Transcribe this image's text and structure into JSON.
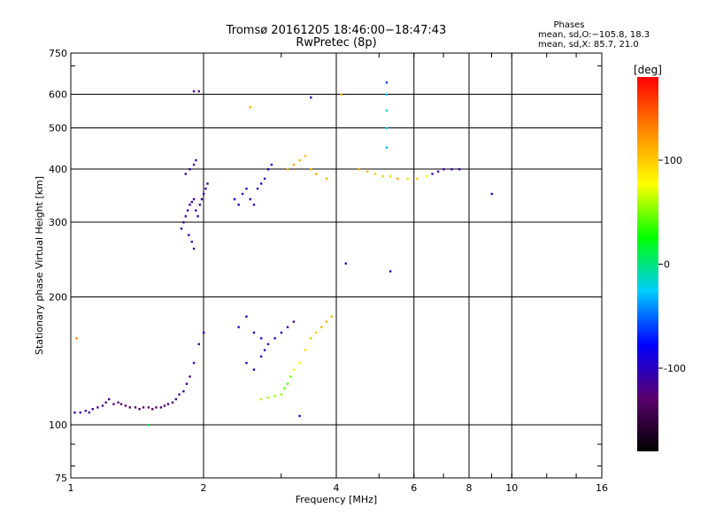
{
  "header": {
    "title_line1": "Tromsø 20161205 18:46:00−18:47:43",
    "title_line2": "RwPretec (8p)"
  },
  "phase_box": {
    "heading": "Phases",
    "line_o": "mean, sd,O:−105.8, 18.3",
    "line_x": "mean, sd,X:  85.7, 21.0"
  },
  "chart_data": {
    "type": "scatter",
    "title": "Tromsø 20161205 18:46:00−18:47:43",
    "subtitle": "RwPretec (8p)",
    "xlabel": "Frequency [MHz]",
    "ylabel": "Stationary phase Virtual Height [km]",
    "x_scale": "log",
    "y_scale": "log",
    "xlim": [
      1,
      16
    ],
    "ylim": [
      75,
      750
    ],
    "x_ticks": [
      1,
      2,
      4,
      6,
      8,
      10,
      16
    ],
    "x_tick_labels": [
      "1",
      "2",
      "4",
      "6",
      "8",
      "10",
      "16"
    ],
    "x_grid": [
      2,
      4,
      6,
      8,
      10
    ],
    "y_ticks": [
      75,
      100,
      200,
      300,
      400,
      500,
      600,
      750
    ],
    "y_tick_labels": [
      "75",
      "100",
      "200",
      "300",
      "400",
      "500",
      "600",
      "750"
    ],
    "y_grid": [
      100,
      200,
      300,
      400,
      500,
      600
    ],
    "grid": true,
    "colorbar": {
      "label": "[deg]",
      "ticks": [
        100,
        0,
        -100
      ],
      "tick_labels": [
        "100",
        "0",
        "-100"
      ],
      "range": [
        -180,
        180
      ],
      "colormap": [
        "#000000",
        "#5a006e",
        "#0000ff",
        "#00ccff",
        "#00ff00",
        "#ffff00",
        "#ff8800",
        "#ff0000"
      ]
    },
    "series": [
      {
        "points": [
          [
            1.02,
            107,
            -110
          ],
          [
            1.05,
            107,
            -110
          ],
          [
            1.08,
            108,
            -108
          ],
          [
            1.1,
            107,
            -112
          ],
          [
            1.12,
            109,
            -110
          ],
          [
            1.15,
            110,
            -115
          ],
          [
            1.18,
            111,
            -115
          ],
          [
            1.2,
            113,
            -120
          ],
          [
            1.22,
            115,
            -120
          ],
          [
            1.25,
            112,
            -125
          ],
          [
            1.28,
            113,
            -125
          ],
          [
            1.3,
            112,
            -130
          ],
          [
            1.33,
            111,
            -130
          ],
          [
            1.36,
            110,
            -130
          ],
          [
            1.4,
            110,
            -130
          ],
          [
            1.43,
            109,
            -130
          ],
          [
            1.46,
            110,
            -130
          ],
          [
            1.5,
            110,
            -130
          ],
          [
            1.53,
            109,
            -130
          ],
          [
            1.56,
            110,
            -130
          ],
          [
            1.6,
            110,
            -125
          ],
          [
            1.63,
            111,
            -125
          ],
          [
            1.66,
            112,
            -125
          ],
          [
            1.7,
            113,
            -120
          ],
          [
            1.73,
            115,
            -120
          ],
          [
            1.76,
            118,
            -115
          ],
          [
            1.8,
            120,
            -115
          ],
          [
            1.83,
            125,
            -110
          ],
          [
            1.86,
            130,
            -110
          ],
          [
            1.9,
            140,
            -110
          ],
          [
            1.95,
            155,
            -110
          ],
          [
            2.0,
            165,
            -110
          ]
        ]
      },
      {
        "points": [
          [
            1.78,
            290,
            -110
          ],
          [
            1.8,
            300,
            -110
          ],
          [
            1.82,
            310,
            -110
          ],
          [
            1.84,
            320,
            -112
          ],
          [
            1.86,
            330,
            -110
          ],
          [
            1.88,
            335,
            -110
          ],
          [
            1.9,
            340,
            -110
          ],
          [
            1.92,
            320,
            -110
          ],
          [
            1.94,
            310,
            -110
          ],
          [
            1.96,
            330,
            -112
          ],
          [
            1.98,
            340,
            -110
          ],
          [
            2.0,
            350,
            -110
          ],
          [
            2.02,
            360,
            -110
          ],
          [
            2.04,
            370,
            -110
          ],
          [
            1.85,
            280,
            -110
          ],
          [
            1.88,
            270,
            -110
          ],
          [
            1.9,
            260,
            -110
          ],
          [
            1.82,
            390,
            -110
          ],
          [
            1.86,
            400,
            -110
          ],
          [
            1.9,
            410,
            -110
          ],
          [
            1.92,
            420,
            -110
          ]
        ]
      },
      {
        "points": [
          [
            2.35,
            340,
            -100
          ],
          [
            2.4,
            330,
            -100
          ],
          [
            2.45,
            350,
            -100
          ],
          [
            2.5,
            360,
            -100
          ],
          [
            2.55,
            340,
            -100
          ],
          [
            2.6,
            330,
            -100
          ],
          [
            2.65,
            360,
            -100
          ],
          [
            2.7,
            370,
            -100
          ],
          [
            2.75,
            380,
            -100
          ],
          [
            2.8,
            400,
            -100
          ],
          [
            2.85,
            410,
            -90
          ]
        ]
      },
      {
        "points": [
          [
            2.4,
            170,
            -100
          ],
          [
            2.5,
            180,
            -100
          ],
          [
            2.6,
            165,
            -100
          ],
          [
            2.7,
            160,
            -100
          ],
          [
            2.75,
            150,
            -100
          ],
          [
            2.8,
            155,
            -100
          ],
          [
            2.9,
            160,
            -100
          ],
          [
            3.0,
            165,
            -100
          ],
          [
            2.5,
            140,
            -100
          ],
          [
            2.6,
            135,
            -100
          ],
          [
            2.7,
            145,
            -100
          ],
          [
            3.1,
            170,
            -110
          ],
          [
            3.2,
            175,
            -110
          ]
        ]
      },
      {
        "points": [
          [
            2.7,
            115,
            60
          ],
          [
            2.8,
            116,
            60
          ],
          [
            2.9,
            117,
            55
          ],
          [
            3.0,
            118,
            50
          ],
          [
            3.05,
            122,
            45
          ],
          [
            3.1,
            125,
            45
          ],
          [
            3.15,
            130,
            50
          ],
          [
            3.2,
            135,
            70
          ],
          [
            3.3,
            140,
            80
          ],
          [
            3.4,
            150,
            90
          ],
          [
            3.5,
            160,
            100
          ],
          [
            3.6,
            165,
            100
          ],
          [
            3.7,
            170,
            110
          ],
          [
            3.8,
            175,
            110
          ],
          [
            3.9,
            180,
            110
          ]
        ]
      },
      {
        "points": [
          [
            3.1,
            400,
            110
          ],
          [
            3.2,
            410,
            115
          ],
          [
            3.3,
            420,
            110
          ],
          [
            3.4,
            430,
            105
          ],
          [
            3.5,
            400,
            110
          ],
          [
            3.6,
            390,
            115
          ],
          [
            3.8,
            380,
            110
          ]
        ]
      },
      {
        "points": [
          [
            4.5,
            400,
            110
          ],
          [
            4.7,
            395,
            105
          ],
          [
            4.9,
            390,
            100
          ],
          [
            5.1,
            385,
            100
          ],
          [
            5.3,
            385,
            100
          ],
          [
            5.5,
            380,
            110
          ],
          [
            5.8,
            380,
            95
          ],
          [
            6.1,
            380,
            100
          ],
          [
            6.4,
            385,
            80
          ],
          [
            6.6,
            390,
            -110
          ],
          [
            6.8,
            395,
            -110
          ],
          [
            7.0,
            400,
            -110
          ],
          [
            7.3,
            400,
            -110
          ],
          [
            7.6,
            400,
            -110
          ]
        ]
      },
      {
        "points": [
          [
            5.2,
            640,
            -60
          ],
          [
            5.2,
            600,
            -30
          ],
          [
            5.2,
            550,
            -20
          ],
          [
            5.2,
            500,
            -20
          ],
          [
            5.2,
            450,
            -30
          ]
        ]
      },
      {
        "points": [
          [
            1.9,
            610,
            -120
          ],
          [
            1.95,
            610,
            -120
          ],
          [
            2.55,
            560,
            110
          ],
          [
            3.5,
            590,
            -110
          ],
          [
            4.1,
            600,
            110
          ],
          [
            9.0,
            350,
            -100
          ],
          [
            4.2,
            240,
            -100
          ],
          [
            5.3,
            230,
            -100
          ],
          [
            3.3,
            105,
            -100
          ],
          [
            1.5,
            100,
            10
          ],
          [
            1.03,
            160,
            130
          ]
        ]
      }
    ]
  }
}
